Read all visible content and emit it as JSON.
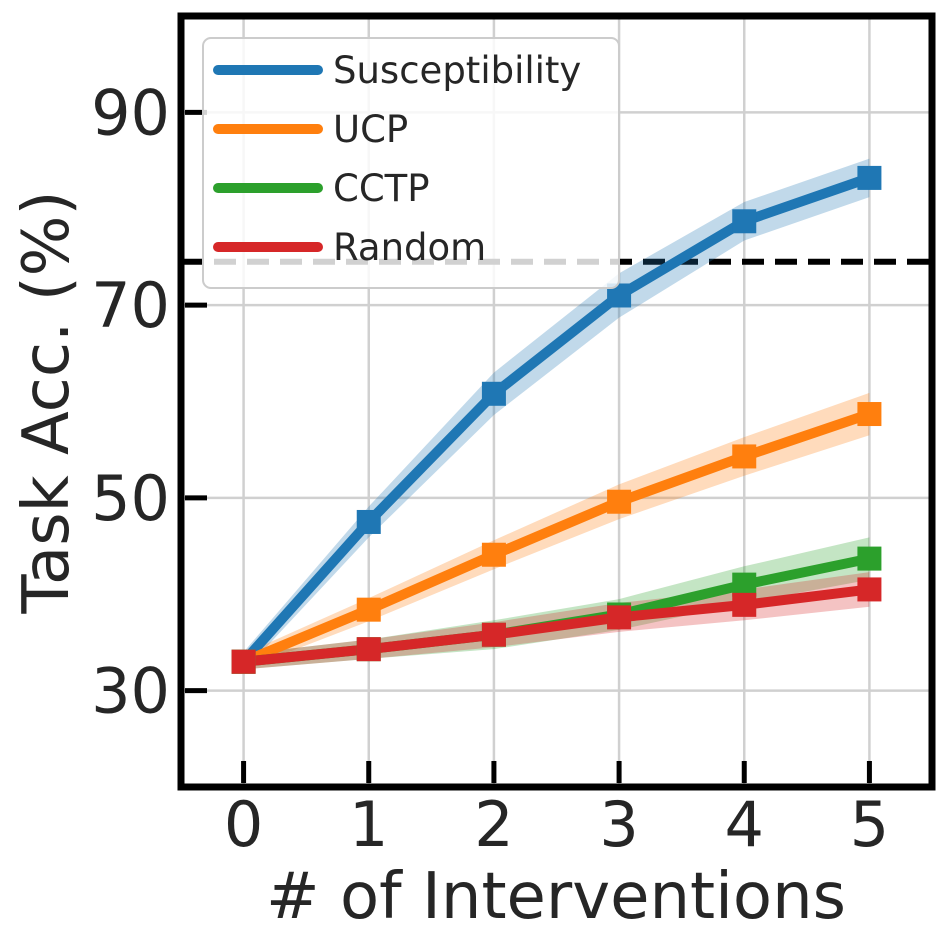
{
  "chart_data": {
    "type": "line",
    "title": "",
    "xlabel": "# of Interventions",
    "ylabel": "Task Acc. (%)",
    "x": [
      0,
      1,
      2,
      3,
      4,
      5
    ],
    "xlim": [
      -0.5,
      5.5
    ],
    "ylim": [
      20,
      100
    ],
    "xticks": [
      "0",
      "1",
      "2",
      "3",
      "4",
      "5"
    ],
    "yticks": [
      "30",
      "50",
      "70",
      "90"
    ],
    "ytick_values": [
      30,
      50,
      70,
      90
    ],
    "grid": true,
    "legend_position": "top-left",
    "series": [
      {
        "name": "Susceptibility",
        "color": "#1f77b4",
        "values": [
          33.0,
          47.5,
          60.8,
          71.0,
          78.7,
          83.2
        ],
        "band": [
          1.0,
          1.6,
          2.2,
          2.3,
          2.0,
          2.0
        ]
      },
      {
        "name": "UCP",
        "color": "#ff7f0e",
        "values": [
          33.0,
          38.4,
          44.1,
          49.6,
          54.3,
          58.7
        ],
        "band": [
          0.8,
          1.2,
          1.5,
          1.8,
          2.0,
          2.2
        ]
      },
      {
        "name": "CCTP",
        "color": "#2ca02c",
        "values": [
          33.0,
          34.3,
          35.8,
          37.9,
          41.0,
          43.7
        ],
        "band": [
          0.8,
          1.0,
          1.5,
          1.6,
          1.9,
          2.2
        ]
      },
      {
        "name": "Random",
        "color": "#d62728",
        "values": [
          33.0,
          34.3,
          35.8,
          37.6,
          38.9,
          40.5
        ],
        "band": [
          0.8,
          1.0,
          1.3,
          1.5,
          1.6,
          1.8
        ]
      }
    ],
    "reference_line": {
      "y": 74.5,
      "style": "dashed",
      "color": "#000000"
    }
  }
}
